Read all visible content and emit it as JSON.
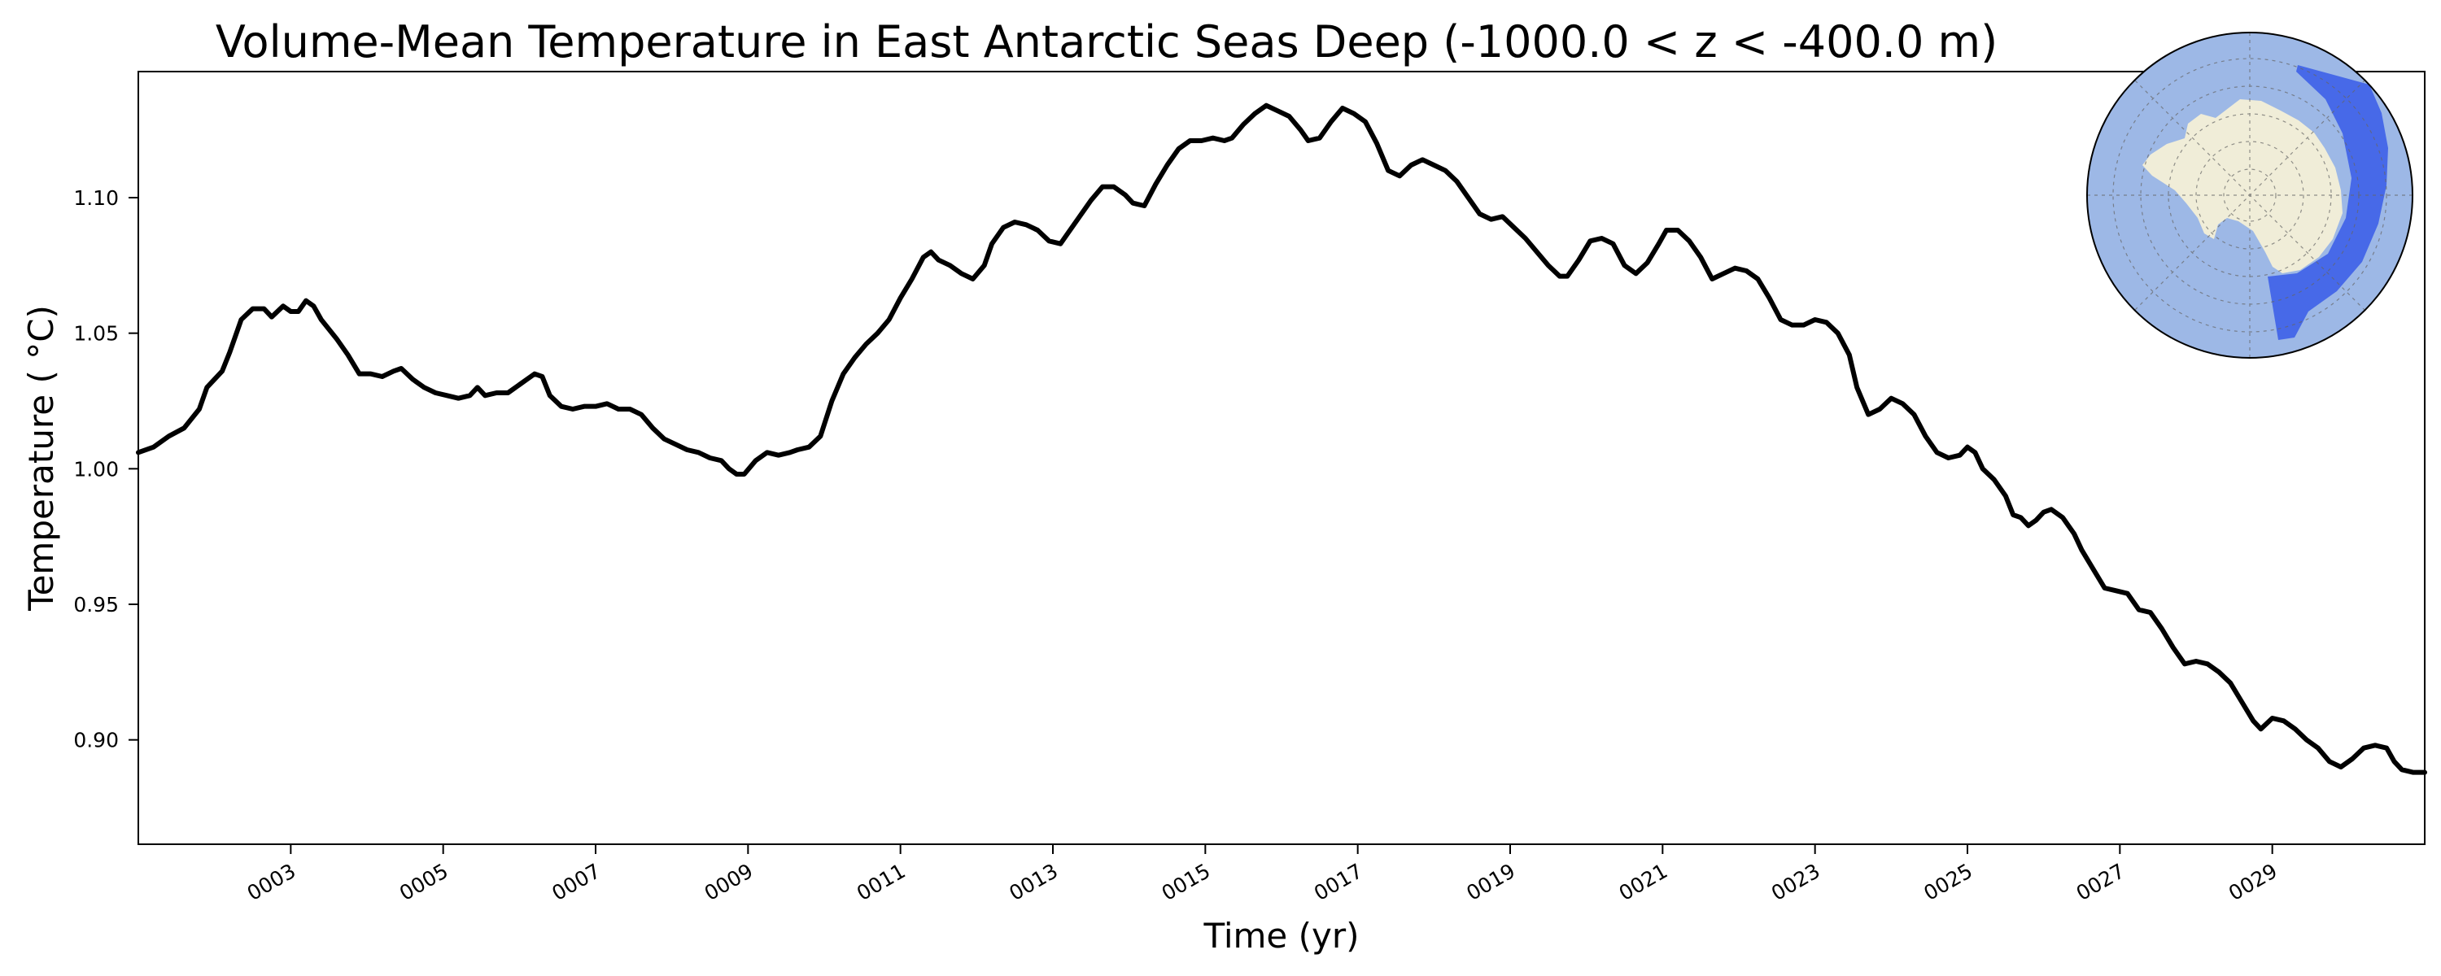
{
  "chart_data": {
    "type": "line",
    "title": "Volume-Mean Temperature in East Antarctic Seas Deep (-1000.0 < z < -400.0 m)",
    "xlabel": "Time (yr)",
    "ylabel": "Temperature ($^\\circ$C)",
    "ylabel_display": "Temperature ( °C)",
    "xlim": [
      1.0,
      31.0
    ],
    "ylim": [
      0.8615,
      1.1465
    ],
    "xticks": [
      3,
      5,
      7,
      9,
      11,
      13,
      15,
      17,
      19,
      21,
      23,
      25,
      27,
      29
    ],
    "xtick_labels": [
      "0003",
      "0005",
      "0007",
      "0009",
      "0011",
      "0013",
      "0015",
      "0017",
      "0019",
      "0021",
      "0023",
      "0025",
      "0027",
      "0029"
    ],
    "yticks": [
      0.9,
      0.95,
      1.0,
      1.05,
      1.1
    ],
    "ytick_labels": [
      "0.90",
      "0.95",
      "1.00",
      "1.05",
      "1.10"
    ],
    "grid": false,
    "series": [
      {
        "name": "Temperature",
        "color": "#000000",
        "points": [
          [
            1.0,
            1.006
          ],
          [
            1.2,
            1.008
          ],
          [
            1.4,
            1.012
          ],
          [
            1.6,
            1.015
          ],
          [
            1.8,
            1.022
          ],
          [
            1.9,
            1.03
          ],
          [
            2.1,
            1.036
          ],
          [
            2.2,
            1.043
          ],
          [
            2.35,
            1.055
          ],
          [
            2.5,
            1.059
          ],
          [
            2.65,
            1.059
          ],
          [
            2.75,
            1.056
          ],
          [
            2.9,
            1.06
          ],
          [
            3.0,
            1.058
          ],
          [
            3.1,
            1.058
          ],
          [
            3.2,
            1.062
          ],
          [
            3.3,
            1.06
          ],
          [
            3.4,
            1.055
          ],
          [
            3.6,
            1.048
          ],
          [
            3.75,
            1.042
          ],
          [
            3.9,
            1.035
          ],
          [
            4.05,
            1.035
          ],
          [
            4.2,
            1.034
          ],
          [
            4.35,
            1.036
          ],
          [
            4.45,
            1.037
          ],
          [
            4.6,
            1.033
          ],
          [
            4.75,
            1.03
          ],
          [
            4.9,
            1.028
          ],
          [
            5.05,
            1.027
          ],
          [
            5.2,
            1.026
          ],
          [
            5.35,
            1.027
          ],
          [
            5.45,
            1.03
          ],
          [
            5.55,
            1.027
          ],
          [
            5.7,
            1.028
          ],
          [
            5.85,
            1.028
          ],
          [
            6.0,
            1.031
          ],
          [
            6.1,
            1.033
          ],
          [
            6.2,
            1.035
          ],
          [
            6.3,
            1.034
          ],
          [
            6.4,
            1.027
          ],
          [
            6.55,
            1.023
          ],
          [
            6.7,
            1.022
          ],
          [
            6.85,
            1.023
          ],
          [
            7.0,
            1.023
          ],
          [
            7.15,
            1.024
          ],
          [
            7.3,
            1.022
          ],
          [
            7.45,
            1.022
          ],
          [
            7.6,
            1.02
          ],
          [
            7.75,
            1.015
          ],
          [
            7.9,
            1.011
          ],
          [
            8.05,
            1.009
          ],
          [
            8.2,
            1.007
          ],
          [
            8.35,
            1.006
          ],
          [
            8.5,
            1.004
          ],
          [
            8.65,
            1.003
          ],
          [
            8.75,
            1.0
          ],
          [
            8.85,
            0.998
          ],
          [
            8.95,
            0.998
          ],
          [
            9.1,
            1.003
          ],
          [
            9.25,
            1.006
          ],
          [
            9.4,
            1.005
          ],
          [
            9.55,
            1.006
          ],
          [
            9.65,
            1.007
          ],
          [
            9.8,
            1.008
          ],
          [
            9.95,
            1.012
          ],
          [
            10.1,
            1.025
          ],
          [
            10.25,
            1.035
          ],
          [
            10.4,
            1.041
          ],
          [
            10.55,
            1.046
          ],
          [
            10.7,
            1.05
          ],
          [
            10.85,
            1.055
          ],
          [
            11.0,
            1.063
          ],
          [
            11.15,
            1.07
          ],
          [
            11.3,
            1.078
          ],
          [
            11.4,
            1.08
          ],
          [
            11.5,
            1.077
          ],
          [
            11.65,
            1.075
          ],
          [
            11.8,
            1.072
          ],
          [
            11.95,
            1.07
          ],
          [
            12.1,
            1.075
          ],
          [
            12.2,
            1.083
          ],
          [
            12.35,
            1.089
          ],
          [
            12.5,
            1.091
          ],
          [
            12.65,
            1.09
          ],
          [
            12.8,
            1.088
          ],
          [
            12.95,
            1.084
          ],
          [
            13.1,
            1.083
          ],
          [
            13.2,
            1.087
          ],
          [
            13.35,
            1.093
          ],
          [
            13.5,
            1.099
          ],
          [
            13.65,
            1.104
          ],
          [
            13.8,
            1.104
          ],
          [
            13.95,
            1.101
          ],
          [
            14.05,
            1.098
          ],
          [
            14.2,
            1.097
          ],
          [
            14.35,
            1.105
          ],
          [
            14.5,
            1.112
          ],
          [
            14.65,
            1.118
          ],
          [
            14.8,
            1.121
          ],
          [
            14.95,
            1.121
          ],
          [
            15.1,
            1.122
          ],
          [
            15.25,
            1.121
          ],
          [
            15.35,
            1.122
          ],
          [
            15.5,
            1.127
          ],
          [
            15.65,
            1.131
          ],
          [
            15.8,
            1.134
          ],
          [
            15.95,
            1.132
          ],
          [
            16.1,
            1.13
          ],
          [
            16.25,
            1.125
          ],
          [
            16.35,
            1.121
          ],
          [
            16.5,
            1.122
          ],
          [
            16.65,
            1.128
          ],
          [
            16.8,
            1.133
          ],
          [
            16.95,
            1.131
          ],
          [
            17.1,
            1.128
          ],
          [
            17.25,
            1.12
          ],
          [
            17.4,
            1.11
          ],
          [
            17.55,
            1.108
          ],
          [
            17.7,
            1.112
          ],
          [
            17.85,
            1.114
          ],
          [
            18.0,
            1.112
          ],
          [
            18.15,
            1.11
          ],
          [
            18.3,
            1.106
          ],
          [
            18.45,
            1.1
          ],
          [
            18.6,
            1.094
          ],
          [
            18.75,
            1.092
          ],
          [
            18.9,
            1.093
          ],
          [
            19.05,
            1.089
          ],
          [
            19.2,
            1.085
          ],
          [
            19.35,
            1.08
          ],
          [
            19.5,
            1.075
          ],
          [
            19.65,
            1.071
          ],
          [
            19.75,
            1.071
          ],
          [
            19.9,
            1.077
          ],
          [
            20.05,
            1.084
          ],
          [
            20.2,
            1.085
          ],
          [
            20.35,
            1.083
          ],
          [
            20.5,
            1.075
          ],
          [
            20.65,
            1.072
          ],
          [
            20.8,
            1.076
          ],
          [
            20.95,
            1.083
          ],
          [
            21.05,
            1.088
          ],
          [
            21.2,
            1.088
          ],
          [
            21.35,
            1.084
          ],
          [
            21.5,
            1.078
          ],
          [
            21.65,
            1.07
          ],
          [
            21.8,
            1.072
          ],
          [
            21.95,
            1.074
          ],
          [
            22.1,
            1.073
          ],
          [
            22.25,
            1.07
          ],
          [
            22.4,
            1.063
          ],
          [
            22.55,
            1.055
          ],
          [
            22.7,
            1.053
          ],
          [
            22.85,
            1.053
          ],
          [
            23.0,
            1.055
          ],
          [
            23.15,
            1.054
          ],
          [
            23.3,
            1.05
          ],
          [
            23.45,
            1.042
          ],
          [
            23.55,
            1.03
          ],
          [
            23.7,
            1.02
          ],
          [
            23.85,
            1.022
          ],
          [
            24.0,
            1.026
          ],
          [
            24.15,
            1.024
          ],
          [
            24.3,
            1.02
          ],
          [
            24.45,
            1.012
          ],
          [
            24.6,
            1.006
          ],
          [
            24.75,
            1.004
          ],
          [
            24.9,
            1.005
          ],
          [
            25.0,
            1.008
          ],
          [
            25.1,
            1.006
          ],
          [
            25.2,
            1.0
          ],
          [
            25.35,
            0.996
          ],
          [
            25.5,
            0.99
          ],
          [
            25.6,
            0.983
          ],
          [
            25.7,
            0.982
          ],
          [
            25.8,
            0.979
          ],
          [
            25.9,
            0.981
          ],
          [
            26.0,
            0.984
          ],
          [
            26.1,
            0.985
          ],
          [
            26.25,
            0.982
          ],
          [
            26.4,
            0.976
          ],
          [
            26.5,
            0.97
          ],
          [
            26.65,
            0.963
          ],
          [
            26.8,
            0.956
          ],
          [
            26.95,
            0.955
          ],
          [
            27.1,
            0.954
          ],
          [
            27.25,
            0.948
          ],
          [
            27.4,
            0.947
          ],
          [
            27.55,
            0.941
          ],
          [
            27.7,
            0.934
          ],
          [
            27.85,
            0.928
          ],
          [
            28.0,
            0.929
          ],
          [
            28.15,
            0.928
          ],
          [
            28.3,
            0.925
          ],
          [
            28.45,
            0.921
          ],
          [
            28.6,
            0.914
          ],
          [
            28.75,
            0.907
          ],
          [
            28.85,
            0.904
          ],
          [
            29.0,
            0.908
          ],
          [
            29.15,
            0.907
          ],
          [
            29.3,
            0.904
          ],
          [
            29.45,
            0.9
          ],
          [
            29.6,
            0.897
          ],
          [
            29.75,
            0.892
          ],
          [
            29.9,
            0.89
          ],
          [
            30.05,
            0.893
          ],
          [
            30.2,
            0.897
          ],
          [
            30.35,
            0.898
          ],
          [
            30.5,
            0.897
          ],
          [
            30.6,
            0.892
          ],
          [
            30.7,
            0.889
          ],
          [
            30.85,
            0.888
          ],
          [
            31.0,
            0.888
          ]
        ]
      }
    ],
    "inset_map": {
      "description_type": "polar-map",
      "ocean_color": "#9db8e6",
      "land_color": "#f0edd8",
      "region_color": "#2b4fe8",
      "region_label": "East Antarctic Seas"
    }
  }
}
